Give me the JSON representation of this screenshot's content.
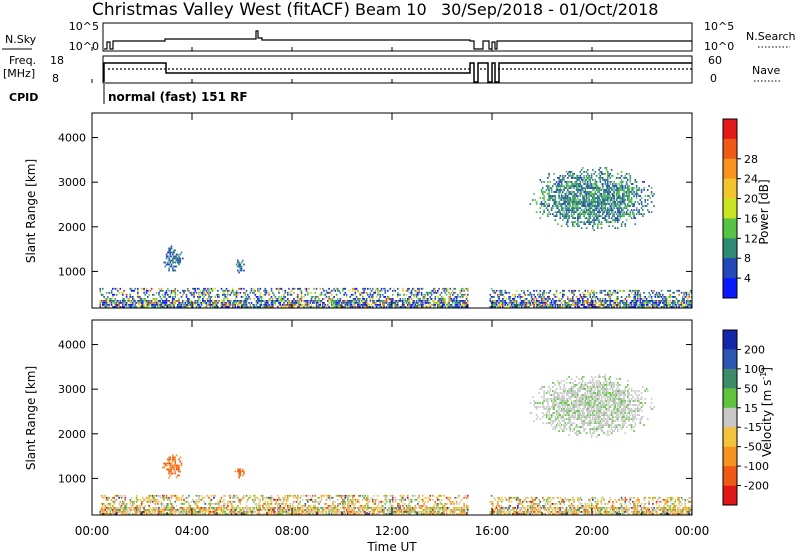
{
  "header": {
    "title": "Christmas Valley West (fitACF)",
    "beam": "Beam 10",
    "date_range": "30/Sep/2018 - 01/Oct/2018"
  },
  "noise_panel": {
    "left_label": "N.Sky",
    "left_ticks": [
      "10^5",
      "10^0"
    ],
    "right_ticks": [
      "10^5",
      "10^0"
    ],
    "right_label": "N.Search"
  },
  "freq_panel": {
    "left_label_1": "Freq.",
    "left_label_2": "[MHz]",
    "left_ticks": [
      "18",
      "8"
    ],
    "right_ticks": [
      "60",
      "0"
    ],
    "right_label": "Nave"
  },
  "cpid": {
    "label": "CPID",
    "value": "normal (fast) 151 RF"
  },
  "chart_data": [
    {
      "type": "heatmap",
      "quantity": "Power",
      "ylabel": "Slant Range [km]",
      "ylim": [
        180,
        4550
      ],
      "y_ticks": [
        1000,
        2000,
        3000,
        4000
      ],
      "xlim_hours": [
        0,
        24
      ],
      "colorbar": {
        "label": "Power [dB]",
        "ticks": [
          "4",
          "8",
          "12",
          "16",
          "20",
          "24",
          "28"
        ],
        "colors": [
          "#0a18ff",
          "#2448b8",
          "#2e8a74",
          "#56c346",
          "#c8e620",
          "#f3c52c",
          "#f7931e",
          "#f05a18",
          "#e21a1a"
        ]
      },
      "echo_regions": [
        {
          "t": [
            0.3,
            16.0
          ],
          "range_km": [
            180,
            600
          ],
          "level": "mixed 4-28 dB"
        },
        {
          "t": [
            2.8,
            3.6
          ],
          "range_km": [
            950,
            1550
          ],
          "level": "8-16 dB"
        },
        {
          "t": [
            5.7,
            6.1
          ],
          "range_km": [
            950,
            1250
          ],
          "level": "8-24 dB"
        },
        {
          "t": [
            16.0,
            24.0
          ],
          "range_km": [
            180,
            550
          ],
          "level": "mixed 4-28 dB"
        },
        {
          "t": [
            17.5,
            22.5
          ],
          "range_km": [
            1900,
            3300
          ],
          "level": "8-16 dB"
        }
      ]
    },
    {
      "type": "heatmap",
      "quantity": "Velocity",
      "ylabel": "Slant Range [km]",
      "ylim": [
        180,
        4550
      ],
      "y_ticks": [
        1000,
        2000,
        3000,
        4000
      ],
      "xlim_hours": [
        0,
        24
      ],
      "xlabel": "Time UT",
      "x_ticks": [
        "00:00",
        "04:00",
        "08:00",
        "12:00",
        "16:00",
        "20:00",
        "00:00"
      ],
      "colorbar": {
        "label": "Velocity [m s",
        "label_sup": "-1",
        "label_end": "]",
        "ticks": [
          "200",
          "100",
          "50",
          "15",
          "-15",
          "-50",
          "-100",
          "-200"
        ],
        "colors": [
          "#1626ab",
          "#2d55b3",
          "#3e8c6a",
          "#5ec43c",
          "#c8c8c8",
          "#f2c33c",
          "#f59320",
          "#ef5a14",
          "#e01616"
        ]
      },
      "echo_regions": [
        {
          "t": [
            0.3,
            16.0
          ],
          "range_km": [
            180,
            600
          ],
          "level": "-50 to 15 m/s"
        },
        {
          "t": [
            2.8,
            3.6
          ],
          "range_km": [
            950,
            1550
          ],
          "level": "-50 to -100 m/s"
        },
        {
          "t": [
            5.7,
            6.1
          ],
          "range_km": [
            950,
            1250
          ],
          "level": "-15 to -50 m/s"
        },
        {
          "t": [
            16.0,
            24.0
          ],
          "range_km": [
            180,
            550
          ],
          "level": "-15 to 50 m/s"
        },
        {
          "t": [
            17.5,
            22.5
          ],
          "range_km": [
            1900,
            3300
          ],
          "level": "-15 to 15 m/s"
        }
      ]
    }
  ]
}
